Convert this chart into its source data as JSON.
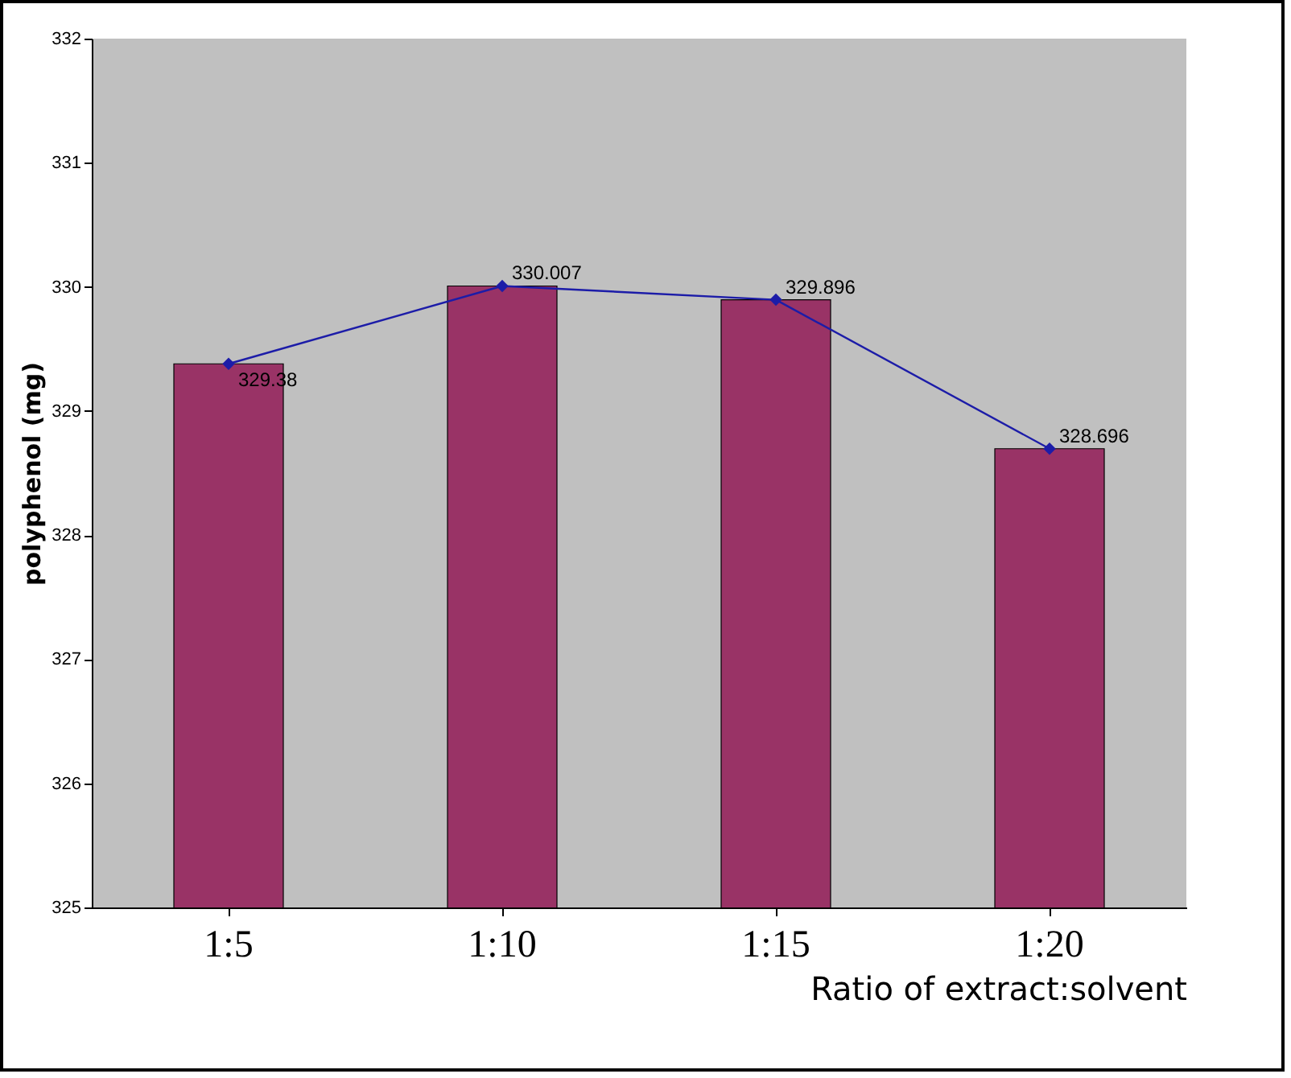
{
  "chart_data": {
    "type": "bar",
    "categories": [
      "1:5",
      "1:10",
      "1:15",
      "1:20"
    ],
    "series": [
      {
        "color": "#993366",
        "values": [
          329.38,
          330.007,
          329.896,
          328.696
        ]
      },
      {
        "type": "line",
        "color": "#1c1ca8",
        "values": [
          329.38,
          330.007,
          329.896,
          328.696
        ],
        "value_labels": [
          "329.38",
          "330.007",
          "329.896",
          "328.696"
        ]
      }
    ],
    "marker": "diamond",
    "ylim": [
      325,
      332
    ],
    "yticks": [
      325,
      326,
      327,
      328,
      329,
      330,
      331,
      332
    ],
    "xlabel": "Ratio of extract:solvent",
    "ylabel": "polyphenol (mg)"
  }
}
